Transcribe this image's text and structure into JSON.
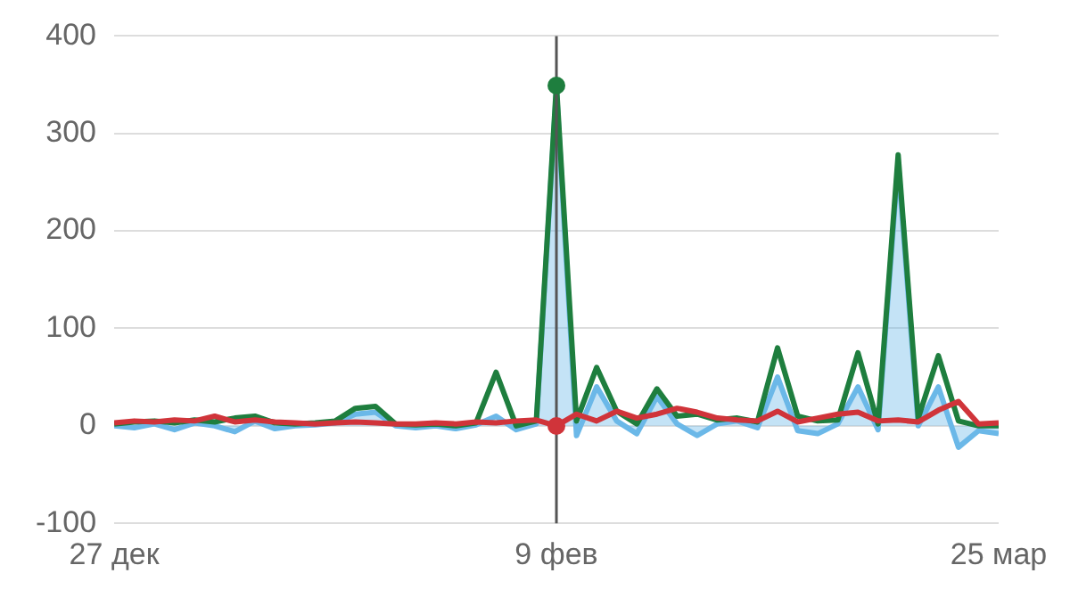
{
  "chart_data": {
    "type": "line",
    "categories": [
      "27 дек",
      null,
      null,
      null,
      null,
      null,
      null,
      null,
      null,
      null,
      null,
      null,
      null,
      null,
      null,
      null,
      null,
      null,
      null,
      null,
      null,
      null,
      "9 фев",
      null,
      null,
      null,
      null,
      null,
      null,
      null,
      null,
      null,
      null,
      null,
      null,
      null,
      null,
      null,
      null,
      null,
      null,
      null,
      null,
      null,
      "25 мар"
    ],
    "series": [
      {
        "type": "area",
        "color": "#6bb8e8",
        "values": [
          0,
          -2,
          2,
          -4,
          3,
          0,
          -6,
          5,
          -3,
          0,
          1,
          3,
          12,
          14,
          0,
          -2,
          0,
          -3,
          1,
          10,
          -4,
          2,
          345,
          -10,
          40,
          5,
          -8,
          30,
          2,
          -10,
          2,
          5,
          -2,
          50,
          -5,
          -8,
          2,
          40,
          -4,
          270,
          0,
          40,
          -22,
          -5,
          -8
        ]
      },
      {
        "type": "line",
        "color": "#1e7e3e",
        "values": [
          2,
          4,
          5,
          3,
          6,
          4,
          8,
          10,
          3,
          2,
          3,
          5,
          18,
          20,
          2,
          1,
          2,
          0,
          3,
          55,
          0,
          5,
          350,
          5,
          60,
          15,
          2,
          38,
          10,
          12,
          6,
          8,
          4,
          80,
          10,
          5,
          6,
          75,
          2,
          278,
          8,
          72,
          5,
          0,
          0
        ]
      },
      {
        "type": "line",
        "color": "#d0343a",
        "values": [
          3,
          5,
          4,
          6,
          5,
          10,
          4,
          6,
          4,
          3,
          2,
          3,
          4,
          3,
          2,
          2,
          3,
          2,
          4,
          3,
          5,
          6,
          0,
          12,
          5,
          15,
          8,
          12,
          18,
          14,
          8,
          6,
          5,
          15,
          4,
          8,
          12,
          14,
          5,
          6,
          4,
          16,
          25,
          2,
          3
        ]
      }
    ],
    "ylim": [
      -100,
      400
    ],
    "yticks": [
      -100,
      0,
      100,
      200,
      300,
      400
    ],
    "grid": "y",
    "ref_lines": [
      {
        "axis": "x",
        "value": "9 фев",
        "color": "#555555"
      }
    ]
  }
}
